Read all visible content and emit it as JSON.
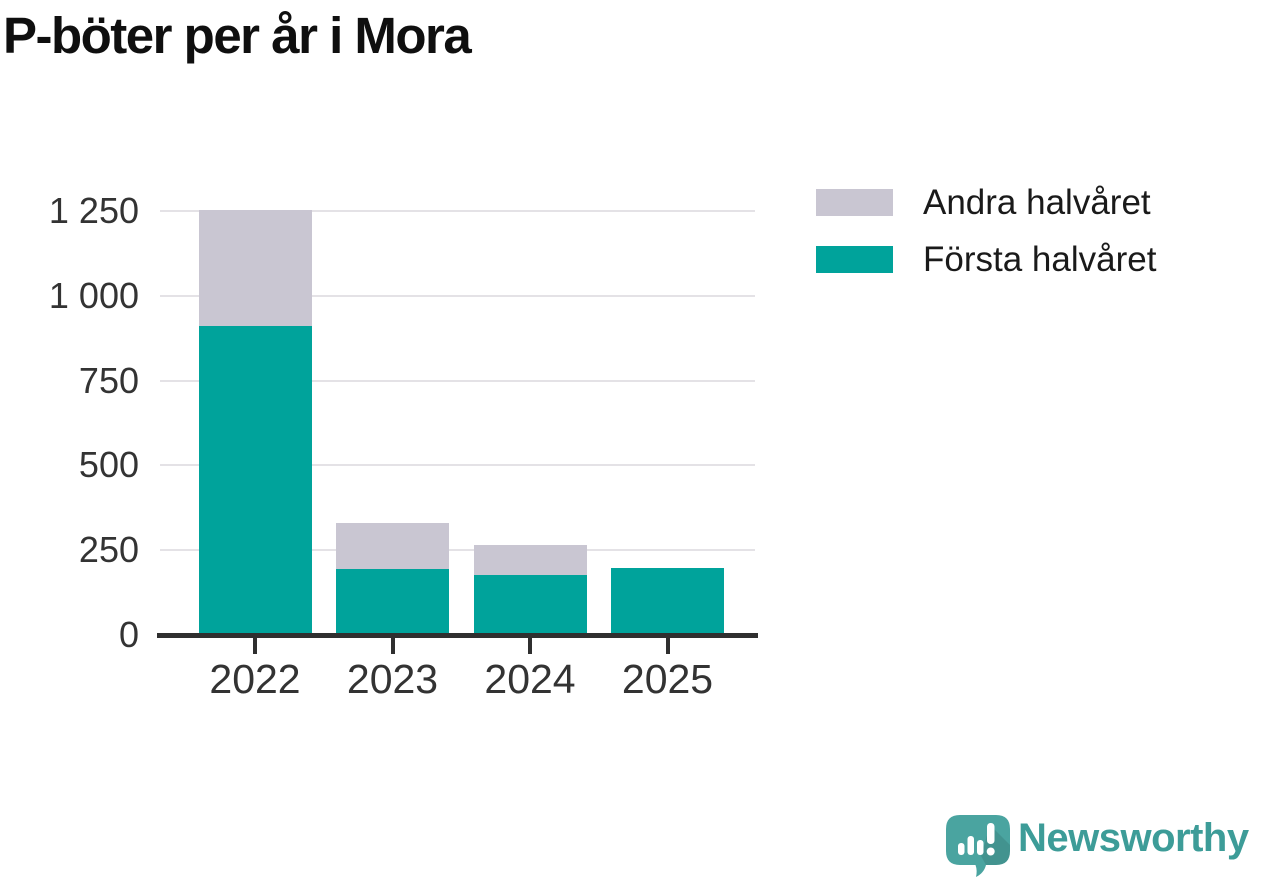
{
  "title": "P-böter per år i Mora",
  "colors": {
    "first_half_teal": "#00a39b",
    "second_half_gray": "#c9c6d2",
    "gridline": "#e4e2e6",
    "axis": "#2f2f2f",
    "tick_label": "#333333",
    "title_text": "#0f0f0f",
    "legend_text": "#1a1a1a",
    "logo_bubble": "#4aa4a0",
    "logo_wordmark": "#3d9c98",
    "background": "#ffffff"
  },
  "legend": {
    "items": [
      {
        "label": "Andra halvåret",
        "color": "#c9c6d2"
      },
      {
        "label": "Första halvåret",
        "color": "#00a39b"
      }
    ]
  },
  "chart_data": {
    "type": "bar",
    "stacked": true,
    "title": "P-böter per år i Mora",
    "categories": [
      "2022",
      "2023",
      "2024",
      "2025"
    ],
    "series": [
      {
        "name": "Första halvåret",
        "color": "#00a39b",
        "values": [
          910,
          196,
          176,
          197
        ]
      },
      {
        "name": "Andra halvåret",
        "color": "#c9c6d2",
        "values": [
          342,
          134,
          88,
          0
        ]
      }
    ],
    "stack_totals": [
      1252,
      330,
      264,
      197
    ],
    "xlabel": "",
    "ylabel": "",
    "ylim": [
      0,
      1250
    ],
    "ytick_values": [
      0,
      250,
      500,
      750,
      1000,
      1250
    ],
    "ytick_labels": [
      "0",
      "250",
      "500",
      "750",
      "1 000",
      "1 250"
    ],
    "grid": true,
    "legend_position": "top-right"
  },
  "branding": {
    "name": "Newsworthy",
    "icon": "newsworthy-speech-bubble-chart-icon"
  }
}
